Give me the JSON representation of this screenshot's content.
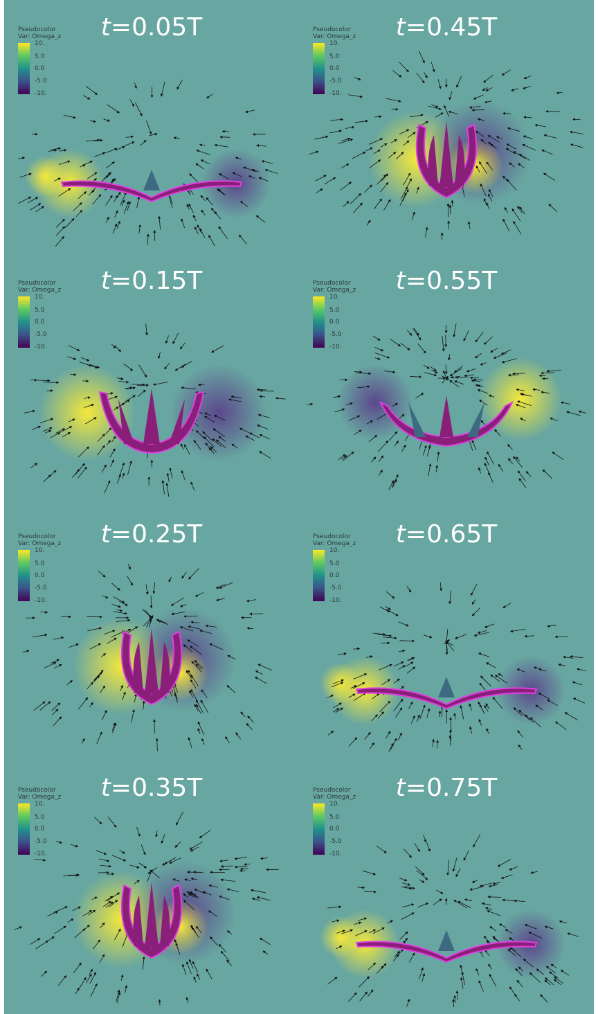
{
  "legend": {
    "title": "Pseudocolor",
    "var": "Var: Omega_z",
    "ticks": [
      "10.",
      "5.0",
      "0.0",
      "-5.0",
      "-10."
    ]
  },
  "panels": [
    {
      "t_prefix": "t",
      "t_value": "=0.05T",
      "shape": "open-flat"
    },
    {
      "t_prefix": "t",
      "t_value": "=0.45T",
      "shape": "closed"
    },
    {
      "t_prefix": "t",
      "t_value": "=0.15T",
      "shape": "cup"
    },
    {
      "t_prefix": "t",
      "t_value": "=0.55T",
      "shape": "opening"
    },
    {
      "t_prefix": "t",
      "t_value": "=0.25T",
      "shape": "closed"
    },
    {
      "t_prefix": "t",
      "t_value": "=0.65T",
      "shape": "open-flat"
    },
    {
      "t_prefix": "t",
      "t_value": "=0.35T",
      "shape": "closed"
    },
    {
      "t_prefix": "t",
      "t_value": "=0.75T",
      "shape": "open-flat"
    }
  ],
  "colors": {
    "background": "#68a6a1",
    "positive_vorticity": "#f4e83a",
    "negative_vorticity": "#5a3d8a",
    "body": "#8a1f7a",
    "body_edge": "#e040e0",
    "arrows": "#111111"
  }
}
